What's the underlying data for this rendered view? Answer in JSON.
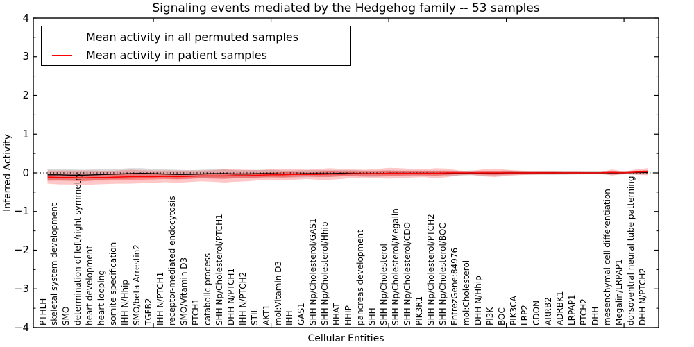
{
  "figure": {
    "title": "Signaling events mediated by the Hedgehog family -- 53 samples"
  },
  "chart_data": {
    "type": "line",
    "title": "Signaling events mediated by the Hedgehog family -- 53 samples",
    "xlabel": "Cellular Entities",
    "ylabel": "Inferred Activity",
    "ylim": [
      -4,
      4
    ],
    "y_ticks": {
      "values": [
        4,
        3,
        2,
        1,
        0,
        -1,
        -2,
        -3,
        -4
      ],
      "labels": [
        "4",
        "3",
        "2",
        "1",
        "0",
        "−1",
        "−2",
        "−3",
        "−4"
      ]
    },
    "y_minor_step": 0.5,
    "x_major_tick_every": 10,
    "grid": false,
    "legend_position": "upper left",
    "zero_reference_line": 0,
    "categories": [
      "PTHLH",
      "skeletal system development",
      "SMO",
      "determination of left/right symmetry",
      "heart development",
      "heart looping",
      "somite specification",
      "IHH N/Hhip",
      "SMO/beta Arrestin2",
      "TGFB2",
      "IHH N/PTCH1",
      "receptor-mediated endocytosis",
      "SMO/Vitamin D3",
      "PTCH1",
      "catabolic process",
      "SHH Np/Cholesterol/PTCH1",
      "DHH N/PTCH1",
      "IHH N/PTCH2",
      "STIL",
      "AKT1",
      "mol:Vitamin D3",
      "IHH",
      "GAS1",
      "SHH Np/Cholesterol/GAS1",
      "SHH Np/Cholesterol/Hhip",
      "HHAT",
      "HHIP",
      "pancreas development",
      "SHH",
      "SHH Np/Cholesterol",
      "SHH Np/Cholesterol/Megalin",
      "SHH Np/Cholesterol/CDO",
      "PIK3R1",
      "SHH Np/Cholesterol/PTCH2",
      "SHH Np/Cholesterol/BOC",
      "EntrezGene:84976",
      "mol:Cholesterol",
      "DHH N/Hhip",
      "PI3K",
      "BOC",
      "PIK3CA",
      "LRP2",
      "CDON",
      "ARRB2",
      "ADRBK1",
      "LRPAP1",
      "PTCH2",
      "DHH",
      "mesenchymal cell differentiation",
      "Megalin/LRPAP1",
      "dorsoventral neural tube patterning",
      "DHH N/PTCH2"
    ],
    "series": [
      {
        "name": "Mean activity in all permuted samples",
        "color": "#000000",
        "style": "solid",
        "values": [
          -0.05,
          -0.05,
          -0.06,
          -0.06,
          -0.05,
          -0.04,
          -0.03,
          -0.02,
          -0.01,
          -0.02,
          -0.03,
          -0.04,
          -0.04,
          -0.03,
          -0.02,
          -0.02,
          -0.03,
          -0.03,
          -0.02,
          -0.02,
          -0.03,
          -0.03,
          -0.02,
          -0.02,
          -0.02,
          -0.01,
          -0.01,
          -0.02,
          -0.02,
          -0.01,
          -0.01,
          -0.01,
          -0.01,
          -0.01,
          -0.01,
          -0.01,
          0,
          -0.01,
          -0.01,
          0,
          0,
          0,
          0,
          0,
          0,
          0,
          0,
          0,
          0,
          0,
          0.01,
          0.01
        ]
      },
      {
        "name": "Mean activity in patient samples",
        "color": "#ff0000",
        "style": "solid",
        "values": [
          -0.11,
          -0.12,
          -0.12,
          -0.13,
          -0.12,
          -0.12,
          -0.11,
          -0.1,
          -0.1,
          -0.1,
          -0.09,
          -0.1,
          -0.09,
          -0.08,
          -0.08,
          -0.08,
          -0.07,
          -0.07,
          -0.06,
          -0.05,
          -0.05,
          -0.04,
          -0.04,
          -0.04,
          -0.03,
          -0.03,
          -0.02,
          -0.02,
          -0.02,
          -0.01,
          -0.01,
          -0.01,
          -0.01,
          -0.01,
          0,
          0,
          0,
          0,
          0,
          0,
          0,
          0,
          0,
          0,
          0,
          0,
          0,
          0,
          0.01,
          0,
          0.02,
          0.03
        ]
      }
    ],
    "bands": [
      {
        "name": "permuted-samples-spread",
        "color": "rgba(0,0,0,0.15)",
        "center_series": 0,
        "halfwidths": [
          0.16,
          0.15,
          0.15,
          0.14,
          0.14,
          0.13,
          0.13,
          0.14,
          0.13,
          0.12,
          0.12,
          0.12,
          0.11,
          0.11,
          0.11,
          0.11,
          0.1,
          0.1,
          0.1,
          0.1,
          0.09,
          0.09,
          0.09,
          0.09,
          0.09,
          0.08,
          0.08,
          0.08,
          0.08,
          0.08,
          0.07,
          0.07,
          0.07,
          0.07,
          0.07,
          0.06,
          0.06,
          0.06,
          0.06,
          0.06,
          0.05,
          0.05,
          0.05,
          0.05,
          0.05,
          0.04,
          0.04,
          0.04,
          0.05,
          0.04,
          0.05,
          0.05
        ]
      },
      {
        "name": "patient-samples-outer-spread",
        "color": "rgba(255,0,0,0.22)",
        "center_series": 1,
        "halfwidths": [
          0.17,
          0.18,
          0.18,
          0.19,
          0.18,
          0.17,
          0.17,
          0.18,
          0.17,
          0.16,
          0.15,
          0.16,
          0.15,
          0.14,
          0.15,
          0.17,
          0.16,
          0.15,
          0.13,
          0.14,
          0.15,
          0.14,
          0.12,
          0.14,
          0.15,
          0.13,
          0.11,
          0.1,
          0.12,
          0.14,
          0.13,
          0.11,
          0.1,
          0.13,
          0.11,
          0.06,
          0.05,
          0.09,
          0.11,
          0.08,
          0.06,
          0.05,
          0.04,
          0.04,
          0.03,
          0.03,
          0.02,
          0.02,
          0.08,
          0.03,
          0.07,
          0.09
        ]
      },
      {
        "name": "patient-samples-inner-spread",
        "color": "rgba(255,0,0,0.30)",
        "center_series": 1,
        "halfwidths": [
          0.08,
          0.08,
          0.08,
          0.09,
          0.08,
          0.08,
          0.08,
          0.08,
          0.08,
          0.07,
          0.07,
          0.07,
          0.07,
          0.06,
          0.07,
          0.08,
          0.07,
          0.07,
          0.06,
          0.06,
          0.07,
          0.06,
          0.05,
          0.06,
          0.07,
          0.06,
          0.05,
          0.05,
          0.05,
          0.06,
          0.06,
          0.05,
          0.05,
          0.06,
          0.05,
          0.03,
          0.02,
          0.04,
          0.05,
          0.04,
          0.03,
          0.02,
          0.02,
          0.02,
          0.01,
          0.01,
          0.01,
          0.01,
          0.04,
          0.01,
          0.03,
          0.04
        ]
      }
    ]
  }
}
